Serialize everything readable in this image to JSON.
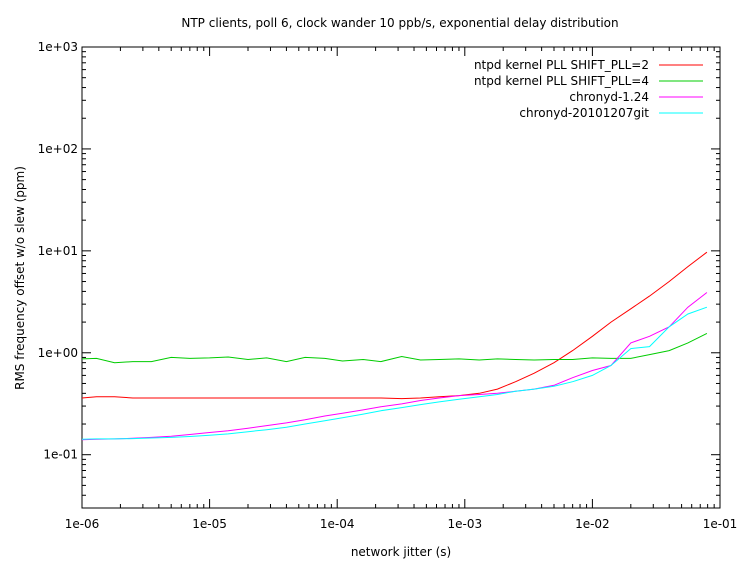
{
  "chart_data": {
    "type": "line",
    "title": "NTP clients, poll 6, clock wander 10 ppb/s, exponential delay distribution",
    "xlabel": "network jitter (s)",
    "ylabel": "RMS frequency offset w/o slew (ppm)",
    "xscale": "log",
    "yscale": "log",
    "xlim": [
      1e-06,
      0.1
    ],
    "ylim": [
      0.03,
      1000
    ],
    "xticks": [
      {
        "value": 1e-06,
        "label": "1e-06"
      },
      {
        "value": 1e-05,
        "label": "1e-05"
      },
      {
        "value": 0.0001,
        "label": "1e-04"
      },
      {
        "value": 0.001,
        "label": "1e-03"
      },
      {
        "value": 0.01,
        "label": "1e-02"
      },
      {
        "value": 0.1,
        "label": "1e-01"
      }
    ],
    "yticks": [
      {
        "value": 0.1,
        "label": "1e-01"
      },
      {
        "value": 1,
        "label": "1e+00"
      },
      {
        "value": 10,
        "label": "1e+01"
      },
      {
        "value": 100,
        "label": "1e+02"
      },
      {
        "value": 1000,
        "label": "1e+03"
      }
    ],
    "grid": false,
    "legend_position": "top-right",
    "series": [
      {
        "name": "ntpd kernel PLL SHIFT_PLL=2",
        "color": "#ff0000",
        "points": [
          [
            1e-06,
            0.36
          ],
          [
            1.3e-06,
            0.37
          ],
          [
            1.8e-06,
            0.37
          ],
          [
            2.5e-06,
            0.36
          ],
          [
            3.5e-06,
            0.36
          ],
          [
            5e-06,
            0.36
          ],
          [
            7e-06,
            0.36
          ],
          [
            1e-05,
            0.36
          ],
          [
            1.4e-05,
            0.36
          ],
          [
            2e-05,
            0.36
          ],
          [
            2.8e-05,
            0.36
          ],
          [
            4e-05,
            0.36
          ],
          [
            5.6e-05,
            0.36
          ],
          [
            8e-05,
            0.36
          ],
          [
            0.00011,
            0.36
          ],
          [
            0.00016,
            0.36
          ],
          [
            0.00022,
            0.36
          ],
          [
            0.00032,
            0.355
          ],
          [
            0.00045,
            0.36
          ],
          [
            0.00063,
            0.37
          ],
          [
            0.0009,
            0.38
          ],
          [
            0.0013,
            0.4
          ],
          [
            0.0018,
            0.44
          ],
          [
            0.0025,
            0.52
          ],
          [
            0.0035,
            0.63
          ],
          [
            0.005,
            0.8
          ],
          [
            0.007,
            1.05
          ],
          [
            0.01,
            1.45
          ],
          [
            0.014,
            2.0
          ],
          [
            0.02,
            2.7
          ],
          [
            0.028,
            3.6
          ],
          [
            0.04,
            5.0
          ],
          [
            0.056,
            7.0
          ],
          [
            0.079,
            9.7
          ]
        ]
      },
      {
        "name": "ntpd kernel PLL SHIFT_PLL=4",
        "color": "#00cc00",
        "points": [
          [
            1e-06,
            0.87
          ],
          [
            1.3e-06,
            0.88
          ],
          [
            1.8e-06,
            0.8
          ],
          [
            2.5e-06,
            0.82
          ],
          [
            3.5e-06,
            0.82
          ],
          [
            5e-06,
            0.9
          ],
          [
            7e-06,
            0.88
          ],
          [
            1e-05,
            0.89
          ],
          [
            1.4e-05,
            0.91
          ],
          [
            2e-05,
            0.86
          ],
          [
            2.8e-05,
            0.89
          ],
          [
            4e-05,
            0.82
          ],
          [
            5.6e-05,
            0.9
          ],
          [
            8e-05,
            0.88
          ],
          [
            0.00011,
            0.83
          ],
          [
            0.00016,
            0.86
          ],
          [
            0.00022,
            0.82
          ],
          [
            0.00032,
            0.92
          ],
          [
            0.00045,
            0.85
          ],
          [
            0.00063,
            0.86
          ],
          [
            0.0009,
            0.87
          ],
          [
            0.0013,
            0.85
          ],
          [
            0.0018,
            0.87
          ],
          [
            0.0025,
            0.86
          ],
          [
            0.0035,
            0.85
          ],
          [
            0.005,
            0.86
          ],
          [
            0.007,
            0.86
          ],
          [
            0.01,
            0.89
          ],
          [
            0.014,
            0.88
          ],
          [
            0.02,
            0.88
          ],
          [
            0.028,
            0.96
          ],
          [
            0.04,
            1.05
          ],
          [
            0.056,
            1.25
          ],
          [
            0.079,
            1.55
          ]
        ]
      },
      {
        "name": "chronyd-1.24",
        "color": "#ff00ff",
        "points": [
          [
            1e-06,
            0.14
          ],
          [
            1.3e-06,
            0.142
          ],
          [
            1.8e-06,
            0.143
          ],
          [
            2.5e-06,
            0.145
          ],
          [
            3.5e-06,
            0.148
          ],
          [
            5e-06,
            0.152
          ],
          [
            7e-06,
            0.158
          ],
          [
            1e-05,
            0.165
          ],
          [
            1.4e-05,
            0.172
          ],
          [
            2e-05,
            0.182
          ],
          [
            2.8e-05,
            0.193
          ],
          [
            4e-05,
            0.205
          ],
          [
            5.6e-05,
            0.22
          ],
          [
            8e-05,
            0.24
          ],
          [
            0.00011,
            0.255
          ],
          [
            0.00016,
            0.275
          ],
          [
            0.00022,
            0.295
          ],
          [
            0.00032,
            0.315
          ],
          [
            0.00045,
            0.34
          ],
          [
            0.00063,
            0.36
          ],
          [
            0.0009,
            0.38
          ],
          [
            0.0013,
            0.39
          ],
          [
            0.0018,
            0.4
          ],
          [
            0.0025,
            0.42
          ],
          [
            0.0035,
            0.44
          ],
          [
            0.005,
            0.48
          ],
          [
            0.007,
            0.57
          ],
          [
            0.01,
            0.67
          ],
          [
            0.014,
            0.75
          ],
          [
            0.02,
            1.25
          ],
          [
            0.028,
            1.45
          ],
          [
            0.04,
            1.8
          ],
          [
            0.056,
            2.8
          ],
          [
            0.079,
            3.9
          ]
        ]
      },
      {
        "name": "chronyd-20101207git",
        "color": "#00ffff",
        "points": [
          [
            1e-06,
            0.142
          ],
          [
            1.3e-06,
            0.143
          ],
          [
            1.8e-06,
            0.143
          ],
          [
            2.5e-06,
            0.144
          ],
          [
            3.5e-06,
            0.146
          ],
          [
            5e-06,
            0.148
          ],
          [
            7e-06,
            0.151
          ],
          [
            1e-05,
            0.155
          ],
          [
            1.4e-05,
            0.16
          ],
          [
            2e-05,
            0.168
          ],
          [
            2.8e-05,
            0.176
          ],
          [
            4e-05,
            0.186
          ],
          [
            5.6e-05,
            0.2
          ],
          [
            8e-05,
            0.215
          ],
          [
            0.00011,
            0.23
          ],
          [
            0.00016,
            0.25
          ],
          [
            0.00022,
            0.27
          ],
          [
            0.00032,
            0.29
          ],
          [
            0.00045,
            0.31
          ],
          [
            0.00063,
            0.33
          ],
          [
            0.0009,
            0.35
          ],
          [
            0.0013,
            0.37
          ],
          [
            0.0018,
            0.39
          ],
          [
            0.0025,
            0.42
          ],
          [
            0.0035,
            0.44
          ],
          [
            0.005,
            0.47
          ],
          [
            0.007,
            0.52
          ],
          [
            0.01,
            0.6
          ],
          [
            0.014,
            0.75
          ],
          [
            0.02,
            1.1
          ],
          [
            0.028,
            1.15
          ],
          [
            0.04,
            1.8
          ],
          [
            0.056,
            2.4
          ],
          [
            0.079,
            2.8
          ]
        ]
      }
    ]
  }
}
